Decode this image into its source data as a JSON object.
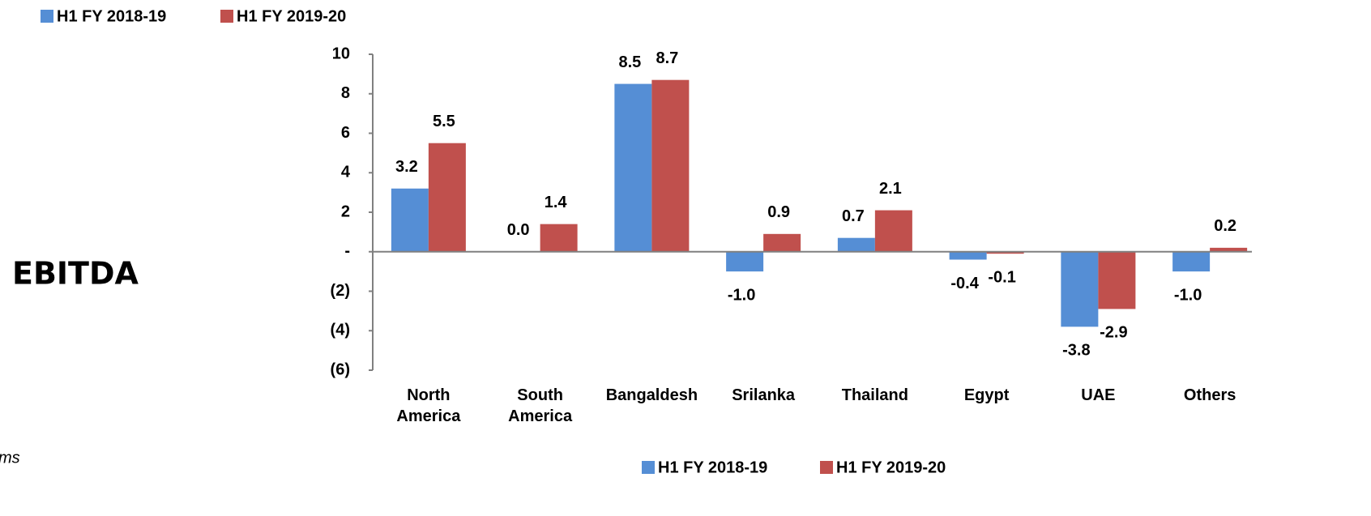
{
  "chart_data": {
    "type": "bar",
    "annotations": [
      "EBITDA",
      "ms"
    ],
    "categories": [
      "North America",
      "South America",
      "Bangaldesh",
      "Srilanka",
      "Thailand",
      "Egypt",
      "UAE",
      "Others"
    ],
    "series": [
      {
        "name": "H1 FY 2018-19",
        "color": "#558ed5",
        "values": [
          3.2,
          0.0,
          8.5,
          -1.0,
          0.7,
          -0.4,
          -3.8,
          -1.0
        ],
        "value_labels": [
          "3.2",
          "0.0",
          "8.5",
          "-1.0",
          "0.7",
          "-0.4",
          "-3.8",
          "-1.0"
        ]
      },
      {
        "name": "H1 FY 2019-20",
        "color": "#c0504d",
        "values": [
          5.5,
          1.4,
          8.7,
          0.9,
          2.1,
          -0.1,
          -2.9,
          0.2
        ],
        "value_labels": [
          "5.5",
          "1.4",
          "8.7",
          "0.9",
          "2.1",
          "-0.1",
          "-2.9",
          "0.2"
        ]
      }
    ],
    "ylim": [
      -6,
      10
    ],
    "yticks": [
      10,
      8,
      6,
      4,
      2,
      {
        "value": 0,
        "label": "-"
      },
      {
        "value": -2,
        "label": "(2)"
      },
      {
        "value": -4,
        "label": "(4)"
      },
      {
        "value": -6,
        "label": "(6)"
      }
    ],
    "grid": false
  }
}
